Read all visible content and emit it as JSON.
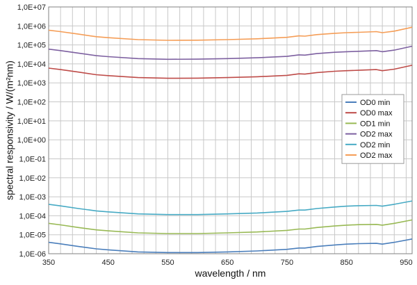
{
  "chart_data": {
    "type": "line",
    "title": "",
    "xlabel": "wavelength / nm",
    "ylabel": "spectral responsivity  / W/(m²nm)",
    "xlim": [
      350,
      960
    ],
    "ylim": [
      1e-06,
      10000000.0
    ],
    "yscale": "log",
    "grid": true,
    "legend_position": "right",
    "xticks": [
      350,
      450,
      550,
      650,
      750,
      850,
      950
    ],
    "xtick_labels": [
      "350",
      "450",
      "550",
      "650",
      "750",
      "850",
      "950"
    ],
    "yticks": [
      10000000.0,
      1000000.0,
      100000.0,
      10000.0,
      1000.0,
      100.0,
      10.0,
      1.0,
      0.1,
      0.01,
      0.001,
      0.0001,
      1e-05,
      1e-06
    ],
    "ytick_labels": [
      "1,0E+07",
      "1,0E+06",
      "1,0E+05",
      "1,0E+04",
      "1,0E+03",
      "1,0E+02",
      "1,0E+01",
      "1,0E+00",
      "1,0E-01",
      "1,0E-02",
      "1,0E-03",
      "1,0E-04",
      "1,0E-05",
      "1,0E-06"
    ],
    "x": [
      350,
      370,
      400,
      430,
      450,
      500,
      550,
      600,
      650,
      700,
      750,
      770,
      780,
      800,
      830,
      850,
      870,
      900,
      910,
      930,
      960
    ],
    "series": [
      {
        "name": "OD0 min",
        "color": "#4a7ebb",
        "values": [
          4e-06,
          3.3e-06,
          2.4e-06,
          1.8e-06,
          1.6e-06,
          1.25e-06,
          1.15e-06,
          1.15e-06,
          1.25e-06,
          1.4e-06,
          1.7e-06,
          2e-06,
          2e-06,
          2.4e-06,
          2.9e-06,
          3.2e-06,
          3.4e-06,
          3.5e-06,
          3.2e-06,
          4e-06,
          6e-06
        ]
      },
      {
        "name": "OD0 max",
        "color": "#be4b48",
        "values": [
          6000,
          5000,
          3700,
          2700,
          2400,
          1900,
          1750,
          1780,
          1900,
          2100,
          2500,
          3000,
          2900,
          3500,
          4100,
          4400,
          4600,
          5000,
          4400,
          5300,
          8500
        ]
      },
      {
        "name": "OD1 min",
        "color": "#98b954",
        "values": [
          4e-05,
          3.3e-05,
          2.4e-05,
          1.8e-05,
          1.6e-05,
          1.25e-05,
          1.15e-05,
          1.15e-05,
          1.25e-05,
          1.4e-05,
          1.7e-05,
          2e-05,
          2e-05,
          2.4e-05,
          2.9e-05,
          3.2e-05,
          3.4e-05,
          3.5e-05,
          3.2e-05,
          4e-05,
          6e-05
        ]
      },
      {
        "name": "OD2 max",
        "color": "#7d60a0",
        "values": [
          60000,
          50000,
          37000,
          27000,
          24000,
          19000,
          17500,
          17800,
          19000,
          21000,
          25000,
          30000,
          29000,
          35000,
          41000,
          44000,
          46000,
          50000,
          44000,
          53000,
          85000
        ]
      },
      {
        "name": "OD2 min",
        "color": "#46aac4",
        "values": [
          0.0004,
          0.00033,
          0.00024,
          0.00018,
          0.00016,
          0.000125,
          0.000115,
          0.000115,
          0.000125,
          0.00014,
          0.00017,
          0.0002,
          0.0002,
          0.00024,
          0.00029,
          0.00032,
          0.00034,
          0.00035,
          0.00032,
          0.0004,
          0.0006
        ]
      },
      {
        "name": "OD2 max",
        "color": "#f59d56",
        "values": [
          600000,
          500000,
          370000,
          270000,
          240000,
          190000,
          175000,
          178000,
          190000,
          210000,
          250000,
          300000,
          290000,
          350000,
          410000,
          440000,
          460000,
          500000,
          440000,
          530000,
          850000
        ]
      }
    ]
  }
}
